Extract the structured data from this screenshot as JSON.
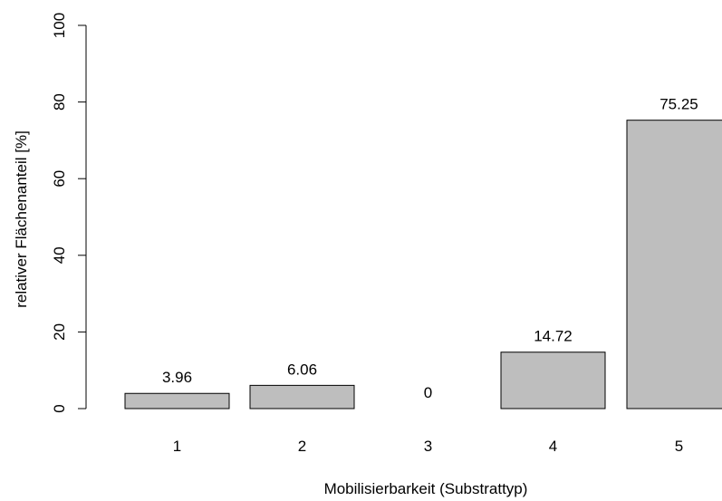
{
  "chart_data": {
    "type": "bar",
    "title": "",
    "xlabel": "Mobilisierbarkeit (Substrattyp)",
    "ylabel": "relativer Flächenanteil [%]",
    "categories": [
      "1",
      "2",
      "3",
      "4",
      "5"
    ],
    "values": [
      3.96,
      6.06,
      0,
      14.72,
      75.25
    ],
    "value_labels": [
      "3.96",
      "6.06",
      "0",
      "14.72",
      "75.25"
    ],
    "ylim": [
      0,
      100
    ],
    "yticks": [
      0,
      20,
      40,
      60,
      80,
      100
    ],
    "grid": false,
    "legend": "none",
    "colors": {
      "bar_fill": "#bebebe",
      "bar_stroke": "#000000",
      "axis": "#000000"
    }
  }
}
